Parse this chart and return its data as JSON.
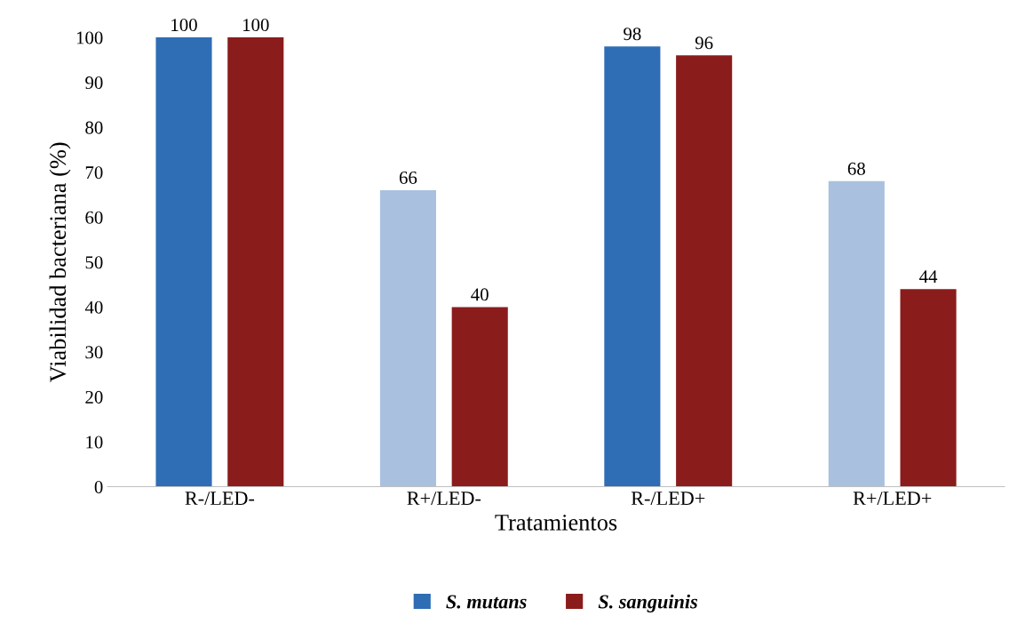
{
  "chart_data": {
    "type": "bar",
    "xlabel": "Tratamientos",
    "ylabel": "Viabilidad bacteriana (%)",
    "categories": [
      "R-/LED-",
      "R+/LED-",
      "R-/LED+",
      "R+/LED+"
    ],
    "series": [
      {
        "name": "S. mutans",
        "color": "#2f6db5",
        "colors": [
          "#2f6db5",
          "#a9c1de",
          "#2f6db5",
          "#a9c1de"
        ],
        "values": [
          100,
          66,
          98,
          68
        ]
      },
      {
        "name": "S. sanguinis",
        "color": "#8b1c1c",
        "values": [
          100,
          40,
          96,
          44
        ]
      }
    ],
    "ylim": [
      0,
      100
    ],
    "yticks": [
      0,
      10,
      20,
      30,
      40,
      50,
      60,
      70,
      80,
      90,
      100
    ],
    "data_labels": true,
    "grid": false,
    "legend": "bottom"
  }
}
